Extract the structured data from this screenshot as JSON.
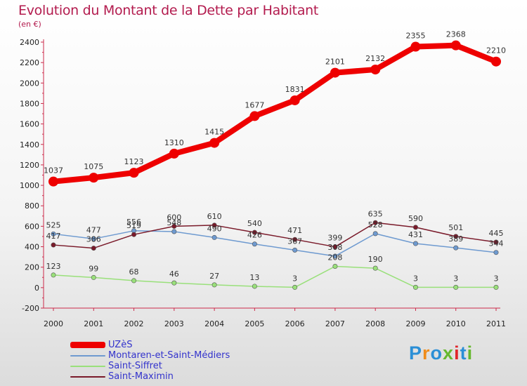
{
  "header": {
    "title": "Evolution du Montant de la Dette par Habitant",
    "subtitle": "(en €)"
  },
  "logo": {
    "text": "Proxiti",
    "colors": [
      "#2b8fd6",
      "#f08c1a",
      "#2b8fd6",
      "#66b82e",
      "#e0262a",
      "#2b8fd6",
      "#66b82e"
    ]
  },
  "chart_data": {
    "type": "line",
    "x": [
      "2000",
      "2001",
      "2002",
      "2003",
      "2004",
      "2005",
      "2006",
      "2007",
      "2008",
      "2009",
      "2010",
      "2011"
    ],
    "ylim": [
      -200,
      2400
    ],
    "yticks": [
      -200,
      0,
      200,
      400,
      600,
      800,
      1000,
      1200,
      1400,
      1600,
      1800,
      2000,
      2200,
      2400
    ],
    "grid": false,
    "legend": "bottom-left",
    "series": [
      {
        "name": "UZèS",
        "color": "#ee0000",
        "width": 8,
        "marker": 7,
        "values": [
          1037,
          1075,
          1123,
          1310,
          1415,
          1677,
          1831,
          2101,
          2132,
          2355,
          2368,
          2210
        ],
        "labels": [
          "1037",
          "1075",
          "1123",
          "1310",
          "1415",
          "1677",
          "1831",
          "2101",
          "2132",
          "2355",
          "2368",
          "2210"
        ]
      },
      {
        "name": "Montaren-et-Saint-Médiers",
        "color": "#6e9ad0",
        "width": 1.5,
        "marker": 3.2,
        "values": [
          525,
          477,
          556,
          548,
          490,
          426,
          367,
          308,
          528,
          431,
          389,
          344
        ],
        "labels": [
          "525",
          "477",
          "556",
          "548",
          "490",
          "426",
          "367",
          "308",
          "528",
          "431",
          "389",
          "344"
        ]
      },
      {
        "name": "Saint-Siffret",
        "color": "#99e07a",
        "width": 1.5,
        "marker": 3.2,
        "values": [
          123,
          99,
          68,
          46,
          27,
          13,
          3,
          208,
          190,
          3,
          3,
          3
        ],
        "labels": [
          "123",
          "99",
          "68",
          "46",
          "27",
          "13",
          "3",
          "208",
          "190",
          "3",
          "3",
          "3"
        ]
      },
      {
        "name": "Saint-Maximin",
        "color": "#7a1a2a",
        "width": 1.5,
        "marker": 3.2,
        "values": [
          417,
          386,
          519,
          600,
          610,
          540,
          471,
          399,
          635,
          590,
          501,
          445
        ],
        "labels": [
          "417",
          "386",
          "519",
          "600",
          "610",
          "540",
          "471",
          "399",
          "635",
          "590",
          "501",
          "445"
        ]
      }
    ]
  }
}
